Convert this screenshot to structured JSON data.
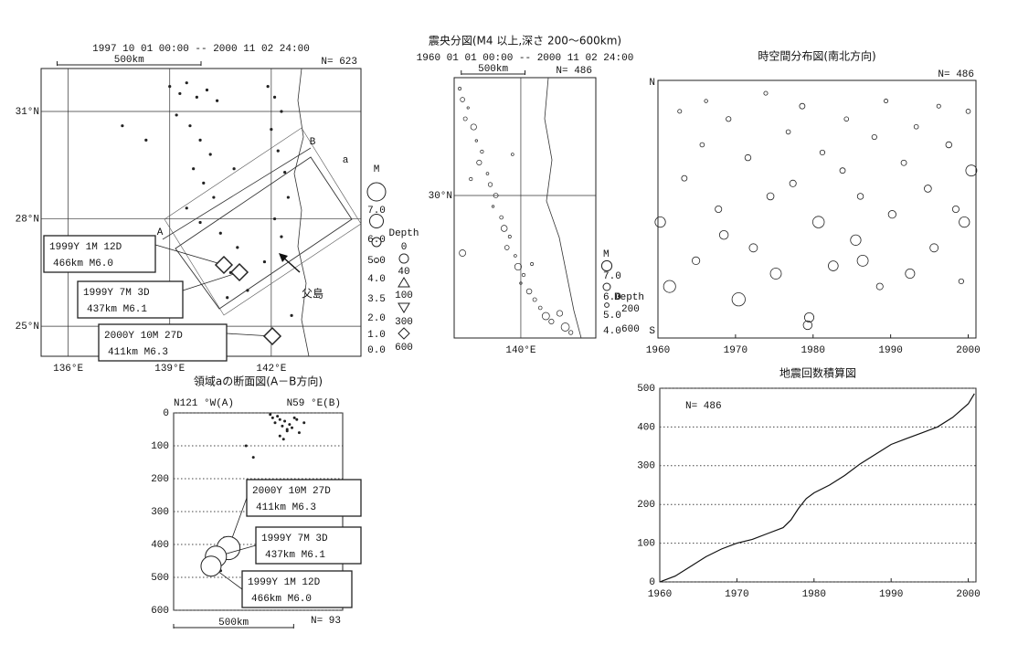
{
  "chart_data": [
    {
      "type": "map",
      "title": "1997 10 01 00:00 -- 2000 11 02 24:00",
      "scale_label": "500km",
      "count_label": "N= 623",
      "region_label": "a",
      "profile_labels": [
        "A",
        "B"
      ],
      "place_label": "父島",
      "xlim": [
        135.2,
        144.65
      ],
      "ylim": [
        24.16,
        32.2
      ],
      "xticks": [
        {
          "value": 136,
          "label": "136°E"
        },
        {
          "value": 139,
          "label": "139°E"
        },
        {
          "value": 142,
          "label": "142°E"
        }
      ],
      "yticks": [
        {
          "value": 25,
          "label": "25°N"
        },
        {
          "value": 28,
          "label": "28°N"
        },
        {
          "value": 31,
          "label": "31°N"
        }
      ],
      "x": [
        139.0,
        139.3,
        139.5,
        139.8,
        140.1,
        140.4,
        139.2,
        139.6,
        139.9,
        140.2,
        139.7,
        140.0,
        140.3,
        139.5,
        139.9,
        140.5,
        141.9,
        142.1,
        142.3,
        142.0,
        142.2,
        142.4,
        142.5,
        142.1,
        142.3,
        141.8,
        140.6,
        140.8,
        141.0,
        140.7,
        141.3,
        137.6,
        138.3,
        140.9,
        142.6
      ],
      "y": [
        31.7,
        31.5,
        31.8,
        31.4,
        31.6,
        31.3,
        30.9,
        30.6,
        30.2,
        29.8,
        29.4,
        29.0,
        28.6,
        28.3,
        27.9,
        27.6,
        31.7,
        31.4,
        31.0,
        30.5,
        29.9,
        29.3,
        28.6,
        28.0,
        27.5,
        26.8,
        26.9,
        26.5,
        27.2,
        25.8,
        26.0,
        30.6,
        30.2,
        29.4,
        25.3
      ],
      "legend_title": "M",
      "legend_values": [
        {
          "value": 7,
          "label": "7.0"
        },
        {
          "value": 6,
          "label": "6.0"
        },
        {
          "value": 5,
          "label": "5.0"
        },
        {
          "value": 4,
          "label": "4.0"
        },
        {
          "value": 3.5,
          "label": "3.5"
        },
        {
          "value": 2,
          "label": "2.0"
        },
        {
          "value": 1,
          "label": "1.0"
        },
        {
          "value": 0,
          "label": "0.0"
        }
      ],
      "depth_title": "Depth",
      "depth_values": [
        0,
        40,
        100,
        300,
        600
      ],
      "annotations": [
        {
          "date": "1999Y 1M 12D",
          "detail": "466km  M6.0"
        },
        {
          "date": "1999Y 7M 3D",
          "detail": "437km  M6.1"
        },
        {
          "date": "2000Y 10M 27D",
          "detail": "411km  M6.3"
        }
      ]
    },
    {
      "type": "map",
      "title": "震央分図(M4 以上,深さ 200～600km)",
      "subtitle": "1960 01 01 00:00 -- 2000 11 02 24:00",
      "scale_label": "500km",
      "count_label": "N= 486",
      "xlim": [
        137.6,
        142.7
      ],
      "ylim": [
        24.8,
        34.3
      ],
      "xticks": [
        {
          "value": 140,
          "label": "140°E"
        }
      ],
      "yticks": [
        {
          "value": 30,
          "label": "30°N"
        }
      ],
      "x": [
        137.8,
        137.9,
        138.1,
        138.0,
        138.3,
        138.4,
        138.6,
        138.5,
        138.8,
        138.9,
        139.1,
        139.0,
        139.3,
        139.4,
        139.6,
        139.5,
        139.8,
        139.9,
        140.1,
        140.0,
        140.3,
        140.5,
        140.4,
        140.7,
        140.9,
        141.1,
        141.4,
        141.6,
        141.8,
        137.9,
        139.7,
        138.2
      ],
      "y": [
        33.9,
        33.5,
        33.2,
        32.8,
        32.5,
        32.0,
        31.6,
        31.2,
        30.8,
        30.4,
        30.0,
        29.6,
        29.2,
        28.8,
        28.5,
        28.1,
        27.8,
        27.4,
        27.1,
        26.8,
        26.5,
        26.2,
        27.5,
        25.9,
        25.6,
        25.4,
        25.7,
        25.2,
        25.0,
        27.9,
        31.5,
        30.6
      ],
      "magnitudes": [
        4.5,
        5.0,
        4.2,
        4.8,
        5.5,
        4.3,
        4.6,
        5.2,
        4.4,
        4.9,
        5.1,
        4.3,
        4.7,
        5.6,
        4.5,
        5.0,
        4.4,
        5.8,
        4.6,
        4.3,
        5.3,
        4.8,
        4.5,
        4.7,
        6.0,
        5.2,
        5.5,
        6.3,
        4.9,
        5.7,
        4.4,
        4.6
      ],
      "legend_title": "M",
      "legend_values": [
        {
          "value": 7,
          "label": "7.0"
        },
        {
          "value": 6,
          "label": "6.0"
        },
        {
          "value": 5,
          "label": "5.0"
        },
        {
          "value": 4,
          "label": "4.0"
        }
      ],
      "depth_title": "Depth",
      "depth_values": [
        200,
        600
      ]
    },
    {
      "type": "scatter",
      "title": "時空間分布図(南北方向)",
      "north_label": "N",
      "south_label": "S",
      "count_label": "N= 486",
      "xlim": [
        1960,
        2001
      ],
      "ylim": [
        0,
        100
      ],
      "xticks": [
        1960,
        1970,
        1980,
        1990,
        2000
      ],
      "x": [
        1960.3,
        1961.5,
        1962.8,
        1963.4,
        1964.9,
        1965.7,
        1966.2,
        1967.8,
        1968.5,
        1969.1,
        1970.4,
        1971.6,
        1972.3,
        1973.9,
        1974.5,
        1975.2,
        1976.8,
        1977.4,
        1978.6,
        1979.3,
        1979.5,
        1980.7,
        1981.2,
        1982.6,
        1983.8,
        1984.3,
        1985.5,
        1986.1,
        1986.4,
        1987.9,
        1988.6,
        1989.4,
        1990.2,
        1991.7,
        1992.5,
        1993.3,
        1994.8,
        1995.6,
        1996.2,
        1997.5,
        1998.4,
        1999.1,
        1999.5,
        2000.0,
        2000.4
      ],
      "y": [
        45,
        20,
        88,
        62,
        30,
        75,
        92,
        50,
        40,
        85,
        15,
        70,
        35,
        95,
        55,
        25,
        80,
        60,
        90,
        5,
        8,
        45,
        72,
        28,
        65,
        85,
        38,
        55,
        30,
        78,
        20,
        92,
        48,
        68,
        25,
        82,
        58,
        35,
        90,
        75,
        50,
        22,
        45,
        88,
        65
      ],
      "magnitudes": [
        5.5,
        5.8,
        4.3,
        4.6,
        5.0,
        4.4,
        4.2,
        4.8,
        5.2,
        4.5,
        6.0,
        4.7,
        5.1,
        4.3,
        4.9,
        5.6,
        4.4,
        4.8,
        4.6,
        5.2,
        5.3,
        5.7,
        4.5,
        5.4,
        4.6,
        4.4,
        5.5,
        4.7,
        5.6,
        4.5,
        4.8,
        4.3,
        5.0,
        4.6,
        5.3,
        4.4,
        4.9,
        5.1,
        4.3,
        4.7,
        4.8,
        4.5,
        5.5,
        4.4,
        5.6
      ]
    },
    {
      "type": "section",
      "title": "領域aの断面図(A－B方向)",
      "left_label": "N121 °W(A)",
      "right_label": "N59 °E(B)",
      "scale_label": "500km",
      "count_label": "N= 93",
      "xlim": [
        0,
        700
      ],
      "ylim": [
        0,
        600
      ],
      "y_inverted": true,
      "yticks": [
        0,
        100,
        200,
        300,
        400,
        500,
        600
      ],
      "grid": true,
      "x": [
        400,
        410,
        420,
        430,
        440,
        450,
        460,
        470,
        480,
        500,
        520,
        540,
        440,
        455,
        470,
        490,
        510,
        300,
        330,
        210,
        220,
        200,
        190,
        230,
        180,
        170,
        240,
        160,
        195
      ],
      "y": [
        5,
        15,
        30,
        10,
        20,
        40,
        25,
        50,
        35,
        15,
        60,
        30,
        70,
        80,
        55,
        45,
        20,
        100,
        135,
        380,
        390,
        400,
        410,
        395,
        420,
        430,
        385,
        450,
        480
      ],
      "events": {
        "x": [
          227,
          175,
          155
        ],
        "y": [
          411,
          437,
          466
        ],
        "magnitudes": [
          6.3,
          6.1,
          6.0
        ]
      },
      "annotations": [
        {
          "date": "2000Y 10M 27D",
          "detail": "411km  M6.3"
        },
        {
          "date": "1999Y 7M 3D",
          "detail": "437km  M6.1"
        },
        {
          "date": "1999Y 1M 12D",
          "detail": "466km  M6.0"
        }
      ]
    },
    {
      "type": "line",
      "title": "地震回数積算図",
      "count_label": "N= 486",
      "xlim": [
        1960,
        2001
      ],
      "ylim": [
        0,
        500
      ],
      "xticks": [
        1960,
        1970,
        1980,
        1990,
        2000
      ],
      "yticks": [
        0,
        100,
        200,
        300,
        400,
        500
      ],
      "grid": true,
      "x": [
        1960,
        1962,
        1964,
        1966,
        1968,
        1970,
        1972,
        1974,
        1976,
        1977,
        1978,
        1979,
        1980,
        1982,
        1984,
        1986,
        1988,
        1990,
        1992,
        1994,
        1996,
        1998,
        2000,
        2000.8
      ],
      "values": [
        0,
        15,
        40,
        65,
        85,
        100,
        110,
        125,
        140,
        160,
        190,
        215,
        230,
        250,
        275,
        305,
        330,
        355,
        370,
        385,
        400,
        425,
        460,
        486
      ]
    }
  ]
}
